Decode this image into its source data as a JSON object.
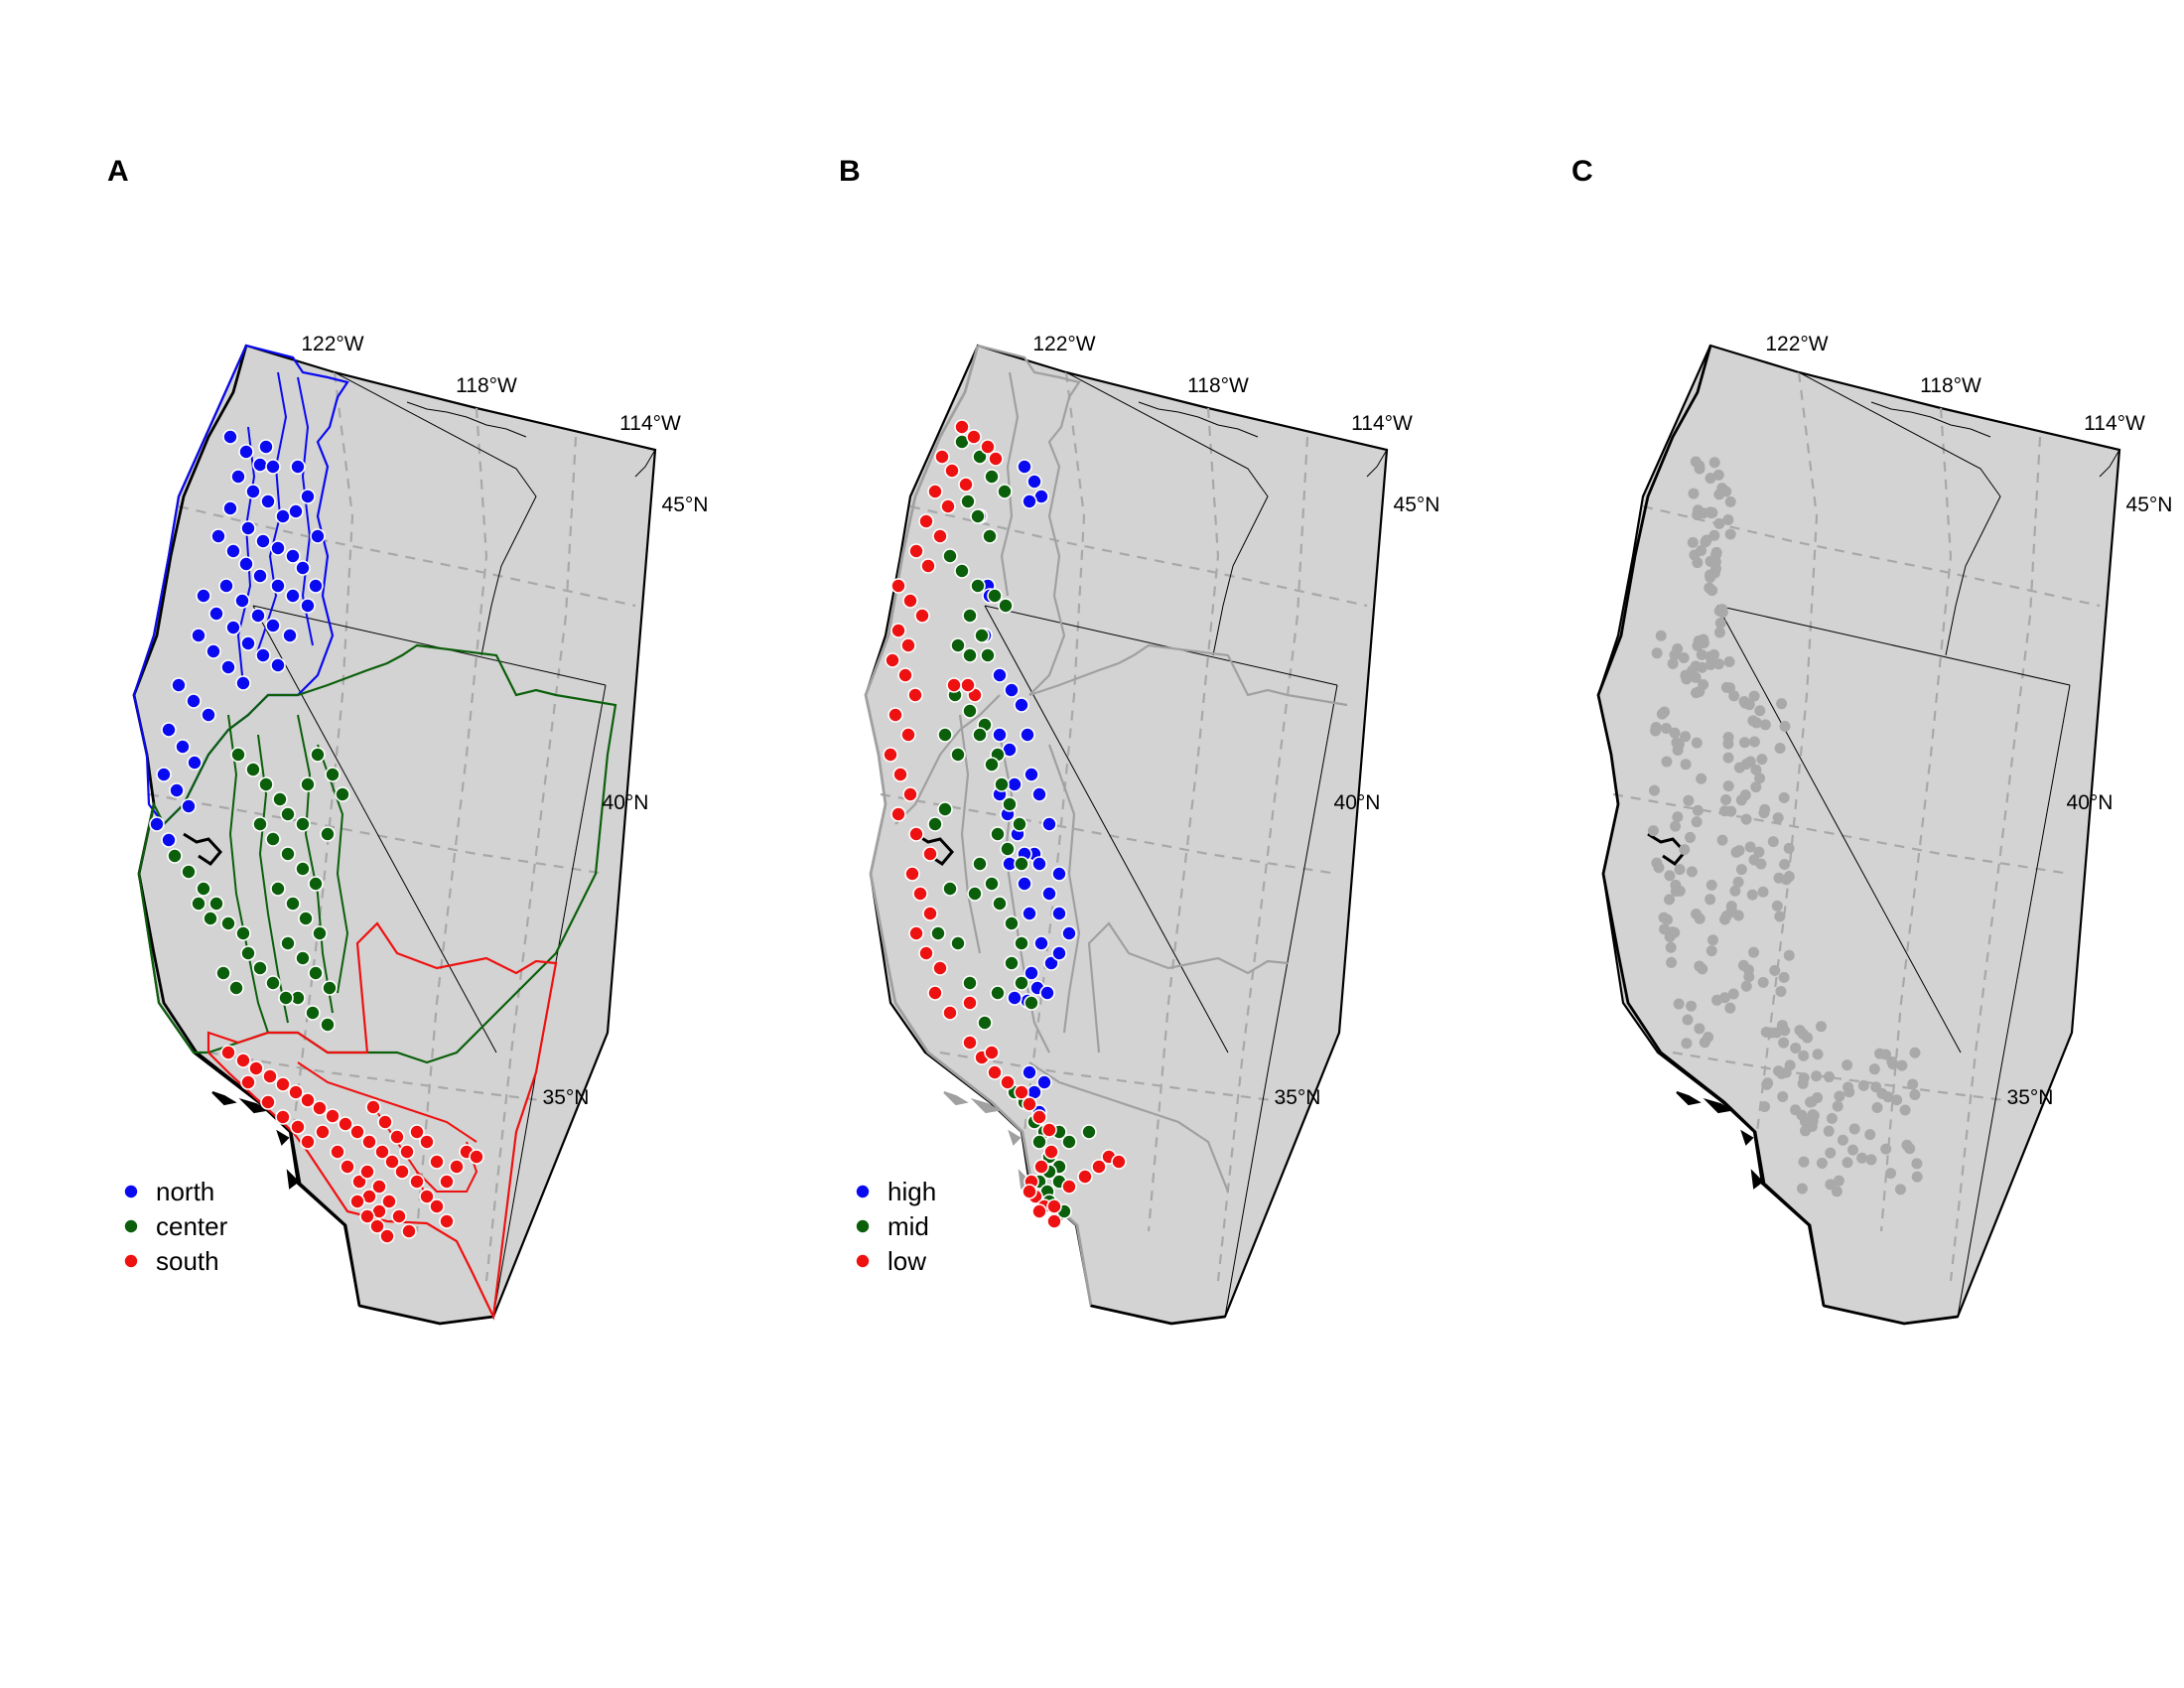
{
  "colors": {
    "north": "#0a0af0",
    "center": "#0b5f0b",
    "south": "#ee1111",
    "high": "#0a0af0",
    "mid": "#0b5f0b",
    "low": "#ee1111",
    "land": "#d3d3d3",
    "grid": "#a8a8a8",
    "neutral_point": "#a9a9a9",
    "gray_boundary": "#a0a0a0"
  },
  "panels": [
    {
      "letter": "A",
      "lon_labels": [
        "122°W",
        "118°W",
        "114°W"
      ],
      "lat_labels": [
        "45°N",
        "40°N",
        "35°N"
      ],
      "legend": [
        "north",
        "center",
        "south"
      ]
    },
    {
      "letter": "B",
      "lon_labels": [
        "122°W",
        "118°W",
        "114°W"
      ],
      "lat_labels": [
        "45°N",
        "40°N",
        "35°N"
      ],
      "legend": [
        "high",
        "mid",
        "low"
      ]
    },
    {
      "letter": "C",
      "lon_labels": [
        "122°W",
        "118°W",
        "114°W"
      ],
      "lat_labels": [
        "45°N",
        "40°N",
        "35°N"
      ],
      "legend": []
    }
  ],
  "map_data": {
    "projection": "conic",
    "lon_gridlines": [
      -122,
      -118,
      -114
    ],
    "lat_gridlines": [
      45,
      40,
      35
    ],
    "regions": [
      "north",
      "center",
      "south"
    ],
    "elevation_classes": [
      "high",
      "mid",
      "low"
    ]
  }
}
